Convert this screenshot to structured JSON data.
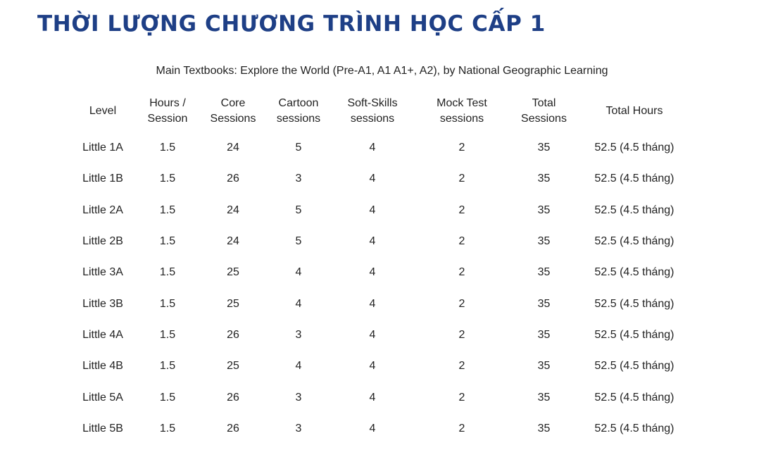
{
  "title": "THỜI LƯỢNG CHƯƠNG TRÌNH HỌC CẤP 1",
  "caption": "Main Textbooks: Explore the World (Pre-A1, A1 A1+, A2), by National Geographic Learning",
  "table": {
    "columns": [
      "Level",
      "Hours / Session",
      "Core Sessions",
      "Cartoon sessions",
      "Soft-Skills sessions",
      "Mock Test sessions",
      "Total Sessions",
      "Total Hours"
    ],
    "rows": [
      [
        "Little 1A",
        "1.5",
        "24",
        "5",
        "4",
        "2",
        "35",
        "52.5 (4.5 tháng)"
      ],
      [
        "Little 1B",
        "1.5",
        "26",
        "3",
        "4",
        "2",
        "35",
        "52.5 (4.5 tháng)"
      ],
      [
        "Little 2A",
        "1.5",
        "24",
        "5",
        "4",
        "2",
        "35",
        "52.5 (4.5 tháng)"
      ],
      [
        "Little 2B",
        "1.5",
        "24",
        "5",
        "4",
        "2",
        "35",
        "52.5 (4.5 tháng)"
      ],
      [
        "Little 3A",
        "1.5",
        "25",
        "4",
        "4",
        "2",
        "35",
        "52.5 (4.5 tháng)"
      ],
      [
        "Little 3B",
        "1.5",
        "25",
        "4",
        "4",
        "2",
        "35",
        "52.5 (4.5 tháng)"
      ],
      [
        "Little 4A",
        "1.5",
        "26",
        "3",
        "4",
        "2",
        "35",
        "52.5 (4.5 tháng)"
      ],
      [
        "Little 4B",
        "1.5",
        "25",
        "4",
        "4",
        "2",
        "35",
        "52.5 (4.5 tháng)"
      ],
      [
        "Little 5A",
        "1.5",
        "26",
        "3",
        "4",
        "2",
        "35",
        "52.5 (4.5 tháng)"
      ],
      [
        "Little 5B",
        "1.5",
        "26",
        "3",
        "4",
        "2",
        "35",
        "52.5 (4.5 tháng)"
      ]
    ]
  },
  "colors": {
    "title": "#1e3f86",
    "text": "#222222",
    "background": "#ffffff"
  }
}
